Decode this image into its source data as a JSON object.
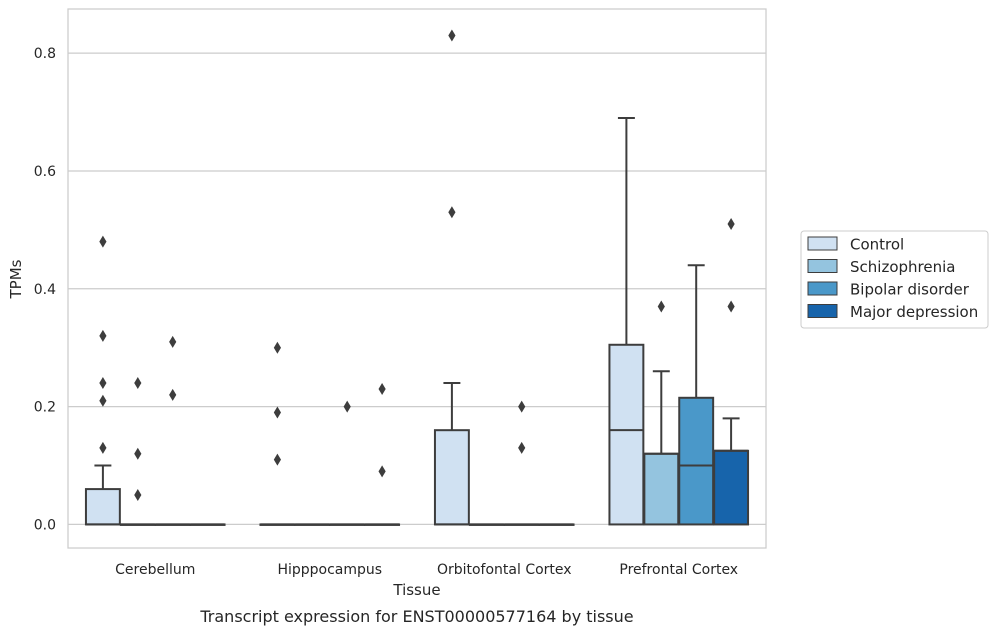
{
  "chart_data": {
    "type": "box",
    "title": "",
    "caption": "Transcript expression for ENST00000577164 by tissue",
    "xlabel": "Tissue",
    "ylabel": "TPMs",
    "ylim": [
      -0.04,
      0.875
    ],
    "yticks": [
      0.0,
      0.2,
      0.4,
      0.6,
      0.8
    ],
    "ytick_labels": [
      "0.0",
      "0.2",
      "0.4",
      "0.6",
      "0.8"
    ],
    "grid": "horizontal",
    "legend_position": "right",
    "categories": [
      "Cerebellum",
      "Hipppocampus",
      "Orbitofontal Cortex",
      "Prefrontal Cortex"
    ],
    "series": [
      {
        "name": "Control",
        "color": "#d0e1f2",
        "boxes": [
          {
            "q1": 0.0,
            "median": 0.0,
            "q3": 0.06,
            "whisker_low": 0.0,
            "whisker_high": 0.1,
            "outliers": [
              0.48,
              0.32,
              0.24,
              0.21,
              0.13
            ]
          },
          {
            "q1": 0.0,
            "median": 0.0,
            "q3": 0.0,
            "whisker_low": 0.0,
            "whisker_high": 0.0,
            "outliers": [
              0.3,
              0.19,
              0.11
            ]
          },
          {
            "q1": 0.0,
            "median": 0.0,
            "q3": 0.16,
            "whisker_low": 0.0,
            "whisker_high": 0.24,
            "outliers": [
              0.83,
              0.53
            ]
          },
          {
            "q1": 0.0,
            "median": 0.16,
            "q3": 0.305,
            "whisker_low": 0.0,
            "whisker_high": 0.69,
            "outliers": []
          }
        ]
      },
      {
        "name": "Schizophrenia",
        "color": "#94c4df",
        "boxes": [
          {
            "q1": 0.0,
            "median": 0.0,
            "q3": 0.0,
            "whisker_low": 0.0,
            "whisker_high": 0.0,
            "outliers": [
              0.24,
              0.12,
              0.05
            ]
          },
          {
            "q1": 0.0,
            "median": 0.0,
            "q3": 0.0,
            "whisker_low": 0.0,
            "whisker_high": 0.0,
            "outliers": []
          },
          {
            "q1": 0.0,
            "median": 0.0,
            "q3": 0.0,
            "whisker_low": 0.0,
            "whisker_high": 0.0,
            "outliers": []
          },
          {
            "q1": 0.0,
            "median": 0.12,
            "q3": 0.12,
            "whisker_low": 0.0,
            "whisker_high": 0.26,
            "outliers": [
              0.37
            ]
          }
        ]
      },
      {
        "name": "Bipolar disorder",
        "color": "#4a98c9",
        "boxes": [
          {
            "q1": 0.0,
            "median": 0.0,
            "q3": 0.0,
            "whisker_low": 0.0,
            "whisker_high": 0.0,
            "outliers": [
              0.31,
              0.22
            ]
          },
          {
            "q1": 0.0,
            "median": 0.0,
            "q3": 0.0,
            "whisker_low": 0.0,
            "whisker_high": 0.0,
            "outliers": [
              0.2
            ]
          },
          {
            "q1": 0.0,
            "median": 0.0,
            "q3": 0.0,
            "whisker_low": 0.0,
            "whisker_high": 0.0,
            "outliers": [
              0.2,
              0.13
            ]
          },
          {
            "q1": 0.0,
            "median": 0.1,
            "q3": 0.215,
            "whisker_low": 0.0,
            "whisker_high": 0.44,
            "outliers": []
          }
        ]
      },
      {
        "name": "Major depression",
        "color": "#1764ab",
        "boxes": [
          {
            "q1": 0.0,
            "median": 0.0,
            "q3": 0.0,
            "whisker_low": 0.0,
            "whisker_high": 0.0,
            "outliers": []
          },
          {
            "q1": 0.0,
            "median": 0.0,
            "q3": 0.0,
            "whisker_low": 0.0,
            "whisker_high": 0.0,
            "outliers": [
              0.23,
              0.09
            ]
          },
          {
            "q1": 0.0,
            "median": 0.0,
            "q3": 0.0,
            "whisker_low": 0.0,
            "whisker_high": 0.0,
            "outliers": []
          },
          {
            "q1": 0.0,
            "median": 0.125,
            "q3": 0.125,
            "whisker_low": 0.0,
            "whisker_high": 0.18,
            "outliers": [
              0.51,
              0.37
            ]
          }
        ]
      }
    ]
  }
}
